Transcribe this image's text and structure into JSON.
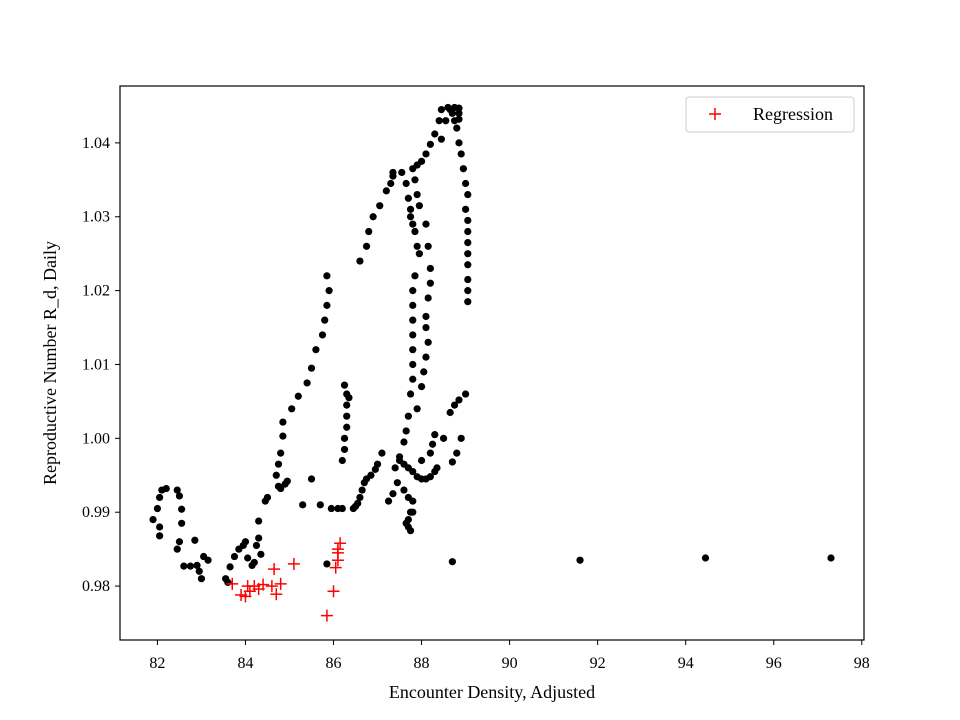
{
  "chart_data": {
    "type": "scatter",
    "title": "",
    "xlabel": "Encounter Density, Adjusted",
    "ylabel": "Reproductive Number R_d, Daily",
    "xlim": [
      81.15,
      98.05
    ],
    "ylim": [
      0.9727,
      1.0477
    ],
    "xticks": [
      82,
      84,
      86,
      88,
      90,
      92,
      94,
      96,
      98
    ],
    "yticks": [
      0.98,
      0.99,
      1.0,
      1.01,
      1.02,
      1.03,
      1.04
    ],
    "ytick_labels": [
      "0.98",
      "0.99",
      "1.00",
      "1.01",
      "1.02",
      "1.03",
      "1.04"
    ],
    "grid": false,
    "legend_position": "top-right",
    "colors": {
      "observed": "#000000",
      "regression": "#ff0000"
    },
    "series": [
      {
        "marker": "dot",
        "points": [
          [
            81.9,
            0.989
          ],
          [
            82.0,
            0.9905
          ],
          [
            82.05,
            0.992
          ],
          [
            82.1,
            0.993
          ],
          [
            82.2,
            0.9932
          ],
          [
            82.05,
            0.988
          ],
          [
            82.05,
            0.9868
          ],
          [
            82.45,
            0.993
          ],
          [
            82.5,
            0.9922
          ],
          [
            82.55,
            0.9904
          ],
          [
            82.55,
            0.9885
          ],
          [
            82.5,
            0.986
          ],
          [
            82.45,
            0.985
          ],
          [
            82.6,
            0.9827
          ],
          [
            82.75,
            0.9827
          ],
          [
            82.85,
            0.9862
          ],
          [
            82.9,
            0.9828
          ],
          [
            82.95,
            0.982
          ],
          [
            83.0,
            0.981
          ],
          [
            83.05,
            0.984
          ],
          [
            83.15,
            0.9835
          ],
          [
            83.55,
            0.981
          ],
          [
            83.6,
            0.9805
          ],
          [
            83.65,
            0.9826
          ],
          [
            83.75,
            0.984
          ],
          [
            83.85,
            0.985
          ],
          [
            83.95,
            0.9855
          ],
          [
            84.0,
            0.986
          ],
          [
            84.05,
            0.9838
          ],
          [
            84.15,
            0.9828
          ],
          [
            84.2,
            0.9832
          ],
          [
            84.25,
            0.9855
          ],
          [
            84.3,
            0.9865
          ],
          [
            84.35,
            0.9843
          ],
          [
            84.3,
            0.9888
          ],
          [
            84.45,
            0.9915
          ],
          [
            84.5,
            0.992
          ],
          [
            84.75,
            0.9935
          ],
          [
            84.8,
            0.9932
          ],
          [
            84.9,
            0.9938
          ],
          [
            84.95,
            0.9942
          ],
          [
            84.7,
            0.995
          ],
          [
            84.75,
            0.9965
          ],
          [
            84.8,
            0.998
          ],
          [
            84.85,
            1.0003
          ],
          [
            84.85,
            1.0022
          ],
          [
            85.05,
            1.004
          ],
          [
            85.2,
            1.0057
          ],
          [
            85.4,
            1.0075
          ],
          [
            85.5,
            1.0095
          ],
          [
            85.6,
            1.012
          ],
          [
            85.75,
            1.014
          ],
          [
            85.8,
            1.016
          ],
          [
            85.85,
            1.018
          ],
          [
            85.9,
            1.02
          ],
          [
            85.85,
            1.022
          ],
          [
            85.3,
            0.991
          ],
          [
            85.5,
            0.9945
          ],
          [
            85.7,
            0.991
          ],
          [
            85.95,
            0.9905
          ],
          [
            86.1,
            0.9905
          ],
          [
            86.2,
            0.9905
          ],
          [
            86.2,
            0.997
          ],
          [
            86.25,
            0.9985
          ],
          [
            86.25,
            1.0
          ],
          [
            86.3,
            1.0015
          ],
          [
            86.3,
            1.003
          ],
          [
            86.3,
            1.0045
          ],
          [
            86.3,
            1.006
          ],
          [
            86.25,
            1.0072
          ],
          [
            86.35,
            1.0055
          ],
          [
            86.45,
            0.9905
          ],
          [
            86.5,
            0.9908
          ],
          [
            86.55,
            0.9912
          ],
          [
            86.6,
            0.992
          ],
          [
            86.65,
            0.993
          ],
          [
            86.7,
            0.994
          ],
          [
            86.75,
            0.9945
          ],
          [
            86.85,
            0.995
          ],
          [
            86.95,
            0.9958
          ],
          [
            87.0,
            0.9965
          ],
          [
            87.1,
            0.998
          ],
          [
            86.6,
            1.024
          ],
          [
            86.75,
            1.026
          ],
          [
            86.8,
            1.028
          ],
          [
            86.9,
            1.03
          ],
          [
            87.05,
            1.0315
          ],
          [
            87.2,
            1.0335
          ],
          [
            87.3,
            1.0345
          ],
          [
            87.35,
            1.0355
          ],
          [
            87.35,
            1.036
          ],
          [
            87.55,
            1.036
          ],
          [
            87.65,
            1.0345
          ],
          [
            87.7,
            1.0325
          ],
          [
            87.75,
            1.031
          ],
          [
            87.75,
            1.03
          ],
          [
            87.8,
            1.029
          ],
          [
            87.85,
            1.028
          ],
          [
            87.9,
            1.026
          ],
          [
            87.95,
            1.025
          ],
          [
            87.85,
            1.022
          ],
          [
            87.8,
            1.02
          ],
          [
            87.8,
            1.018
          ],
          [
            87.8,
            1.016
          ],
          [
            87.8,
            1.014
          ],
          [
            87.8,
            1.012
          ],
          [
            87.8,
            1.01
          ],
          [
            87.8,
            1.008
          ],
          [
            87.75,
            1.006
          ],
          [
            87.7,
            1.003
          ],
          [
            87.65,
            1.001
          ],
          [
            87.6,
            0.9995
          ],
          [
            87.5,
            0.9975
          ],
          [
            87.4,
            0.996
          ],
          [
            87.45,
            0.994
          ],
          [
            87.35,
            0.9925
          ],
          [
            87.25,
            0.9915
          ],
          [
            87.6,
            0.993
          ],
          [
            87.7,
            0.992
          ],
          [
            87.75,
            0.99
          ],
          [
            87.7,
            0.989
          ],
          [
            87.7,
            0.988
          ],
          [
            87.65,
            0.9885
          ],
          [
            87.75,
            0.9875
          ],
          [
            87.8,
            0.99
          ],
          [
            87.8,
            0.9915
          ],
          [
            87.5,
            0.997
          ],
          [
            87.6,
            0.9965
          ],
          [
            87.7,
            0.996
          ],
          [
            87.8,
            0.9955
          ],
          [
            87.9,
            0.9948
          ],
          [
            88.0,
            0.9945
          ],
          [
            88.1,
            0.9945
          ],
          [
            88.2,
            0.9948
          ],
          [
            88.3,
            0.9955
          ],
          [
            88.35,
            0.996
          ],
          [
            88.0,
            0.997
          ],
          [
            88.2,
            0.998
          ],
          [
            88.25,
            0.9992
          ],
          [
            88.3,
            1.0005
          ],
          [
            87.9,
            1.004
          ],
          [
            88.0,
            1.007
          ],
          [
            88.05,
            1.009
          ],
          [
            88.1,
            1.011
          ],
          [
            88.15,
            1.013
          ],
          [
            88.1,
            1.015
          ],
          [
            88.1,
            1.0165
          ],
          [
            88.15,
            1.019
          ],
          [
            88.2,
            1.021
          ],
          [
            88.2,
            1.023
          ],
          [
            88.15,
            1.026
          ],
          [
            88.1,
            1.029
          ],
          [
            87.95,
            1.0315
          ],
          [
            87.9,
            1.033
          ],
          [
            87.85,
            1.035
          ],
          [
            87.8,
            1.0365
          ],
          [
            87.9,
            1.037
          ],
          [
            88.0,
            1.0375
          ],
          [
            88.1,
            1.0385
          ],
          [
            88.2,
            1.0398
          ],
          [
            88.3,
            1.0412
          ],
          [
            88.4,
            1.043
          ],
          [
            88.45,
            1.0445
          ],
          [
            88.6,
            1.0448
          ],
          [
            88.7,
            1.044
          ],
          [
            88.75,
            1.043
          ],
          [
            88.8,
            1.042
          ],
          [
            88.85,
            1.04
          ],
          [
            88.9,
            1.0385
          ],
          [
            88.95,
            1.0365
          ],
          [
            89.0,
            1.0345
          ],
          [
            89.05,
            1.033
          ],
          [
            89.0,
            1.031
          ],
          [
            89.05,
            1.0295
          ],
          [
            89.05,
            1.028
          ],
          [
            89.05,
            1.0265
          ],
          [
            89.05,
            1.025
          ],
          [
            89.05,
            1.0235
          ],
          [
            89.05,
            1.0215
          ],
          [
            89.05,
            1.02
          ],
          [
            89.05,
            1.0185
          ],
          [
            88.65,
            1.0445
          ],
          [
            88.75,
            1.0448
          ],
          [
            88.85,
            1.0447
          ],
          [
            88.85,
            1.044
          ],
          [
            88.85,
            1.0432
          ],
          [
            88.55,
            1.043
          ],
          [
            88.45,
            1.0405
          ],
          [
            88.5,
            1.0
          ],
          [
            88.65,
            1.0035
          ],
          [
            88.75,
            1.0045
          ],
          [
            88.85,
            1.0052
          ],
          [
            89.0,
            1.006
          ],
          [
            88.9,
            1.0
          ],
          [
            88.8,
            0.998
          ],
          [
            88.7,
            0.9968
          ],
          [
            85.85,
            0.983
          ],
          [
            88.7,
            0.9833
          ],
          [
            91.6,
            0.9835
          ],
          [
            94.45,
            0.9838
          ],
          [
            97.3,
            0.9838
          ]
        ]
      },
      {
        "name": "Regression",
        "marker": "plus",
        "points": [
          [
            83.7,
            0.9803
          ],
          [
            83.9,
            0.9788
          ],
          [
            84.0,
            0.9786
          ],
          [
            84.05,
            0.98
          ],
          [
            84.1,
            0.9793
          ],
          [
            84.2,
            0.98
          ],
          [
            84.3,
            0.9796
          ],
          [
            84.4,
            0.9802
          ],
          [
            84.6,
            0.98
          ],
          [
            84.65,
            0.9823
          ],
          [
            84.7,
            0.9789
          ],
          [
            84.8,
            0.9803
          ],
          [
            85.1,
            0.983
          ],
          [
            85.85,
            0.976
          ],
          [
            86.0,
            0.9793
          ],
          [
            86.05,
            0.9825
          ],
          [
            86.1,
            0.9835
          ],
          [
            86.1,
            0.9845
          ],
          [
            86.1,
            0.985
          ],
          [
            86.15,
            0.9858
          ]
        ]
      }
    ]
  }
}
